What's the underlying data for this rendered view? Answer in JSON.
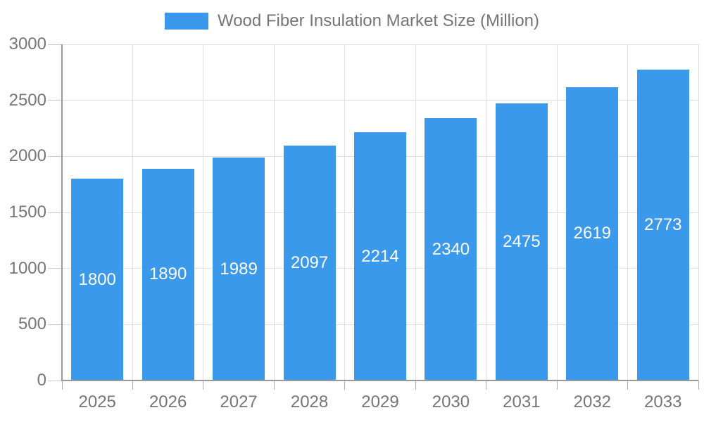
{
  "chart_data": {
    "type": "bar",
    "title": "Wood Fiber Insulation Market Size (Million)",
    "categories": [
      "2025",
      "2026",
      "2027",
      "2028",
      "2029",
      "2030",
      "2031",
      "2032",
      "2033"
    ],
    "values": [
      1800,
      1890,
      1989,
      2097,
      2214,
      2340,
      2475,
      2619,
      2773
    ],
    "series": [
      {
        "name": "Wood Fiber Insulation Market Size (Million)",
        "values": [
          1800,
          1890,
          1989,
          2097,
          2214,
          2340,
          2475,
          2619,
          2773
        ]
      }
    ],
    "xlabel": "",
    "ylabel": "",
    "ylim": [
      0,
      3000
    ],
    "ytick_step": 500,
    "ytick_labels": [
      "0",
      "500",
      "1000",
      "1500",
      "2000",
      "2500",
      "3000"
    ],
    "grid": true,
    "legend_position": "top",
    "bar_value_labels_shown": true,
    "colors": {
      "bar": "#3b99ec",
      "bar_label": "#ffffff",
      "axis_text": "#757575",
      "axis_line": "#999999",
      "gridline": "#e0e0e0",
      "background": "#ffffff"
    }
  },
  "legend": {
    "label": "Wood Fiber Insulation Market Size (Million)",
    "swatch_color": "#3b99ec"
  }
}
